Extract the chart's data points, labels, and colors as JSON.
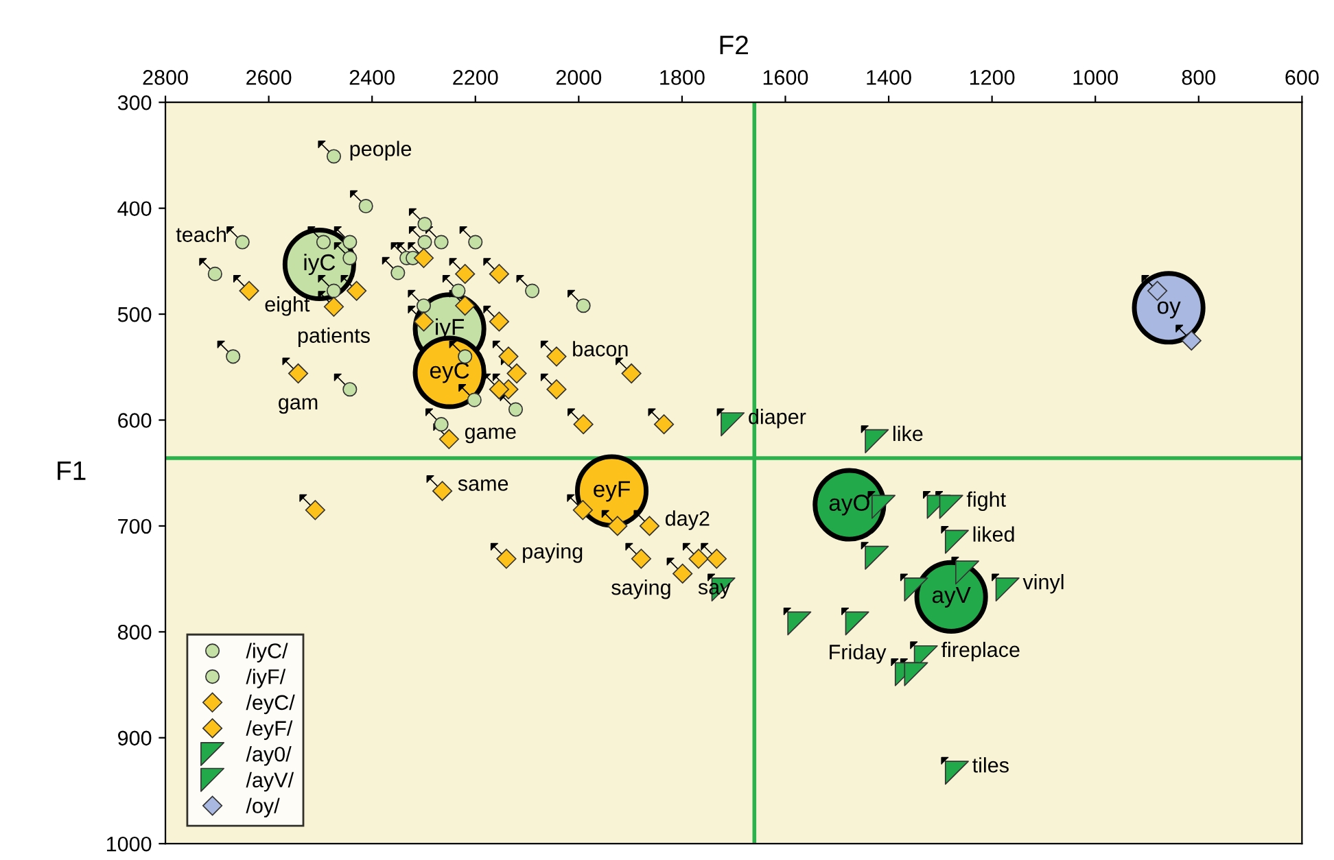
{
  "chart_data": {
    "type": "scatter",
    "xlabel": "F2",
    "ylabel": "F1",
    "xlim": [
      2800,
      600
    ],
    "ylim": [
      1000,
      300
    ],
    "xticks": [
      2800,
      2600,
      2400,
      2200,
      2000,
      1800,
      1600,
      1400,
      1200,
      1000,
      800,
      600
    ],
    "yticks": [
      300,
      400,
      500,
      600,
      700,
      800,
      900,
      1000
    ],
    "grid": false,
    "legend": "bottom left",
    "series": [
      {
        "name": "/iyC/",
        "color": "#c5e0a5",
        "marker": "circle",
        "x": [
          2474,
          2412,
          2651,
          2704,
          2494,
          2443,
          2443,
          2474,
          2669,
          2350,
          2298,
          2298,
          2266,
          2333,
          2321
        ],
        "values": [
          351,
          398,
          432,
          462,
          432,
          432,
          447,
          478,
          540,
          461,
          415,
          432,
          432,
          447,
          447
        ]
      },
      {
        "name": "/iyF/",
        "color": "#c5e0a5",
        "marker": "circle",
        "x": [
          2443,
          2200,
          2090,
          2300,
          2233,
          2220,
          2202,
          2122,
          2266,
          1991
        ],
        "values": [
          571,
          432,
          478,
          492,
          478,
          540,
          581,
          590,
          604,
          492
        ]
      },
      {
        "name": "/eyC/",
        "color": "#fcc21b",
        "marker": "diamond",
        "x": [
          2638,
          2430,
          2474,
          2543,
          2300,
          2220,
          2154,
          2220,
          2300,
          2154,
          2136,
          2120,
          2136,
          2043,
          2043,
          2251,
          1898,
          1991,
          1835,
          2510,
          2264,
          2140,
          1879,
          1768,
          1733
        ],
        "values": [
          478,
          478,
          493,
          556,
          447,
          462,
          462,
          492,
          507,
          507,
          540,
          556,
          571,
          540,
          571,
          618,
          556,
          604,
          604,
          685,
          667,
          731,
          731,
          731,
          731
        ]
      },
      {
        "name": "/eyF/",
        "color": "#fcc21b",
        "marker": "diamond",
        "x": [
          2154,
          1992,
          1925,
          1863,
          1799
        ],
        "values": [
          571,
          685,
          700,
          700,
          745
        ]
      },
      {
        "name": "/ay0/",
        "color": "#22aa4a",
        "marker": "triangle",
        "x": [
          1702,
          1423,
          1410,
          1423
        ],
        "values": [
          604,
          620,
          682,
          730
        ]
      },
      {
        "name": "/ayV/",
        "color": "#22aa4a",
        "marker": "triangle",
        "x": [
          1303,
          1279,
          1268,
          1248,
          1347,
          1170,
          1573,
          1461,
          1328,
          1365,
          1347,
          1268,
          1720
        ],
        "values": [
          682,
          682,
          715,
          744,
          760,
          760,
          792,
          792,
          824,
          840,
          840,
          933,
          760
        ]
      },
      {
        "name": "/oy/",
        "color": "#a9b8e0",
        "marker": "diamond",
        "x": [
          880,
          814
        ],
        "values": [
          478,
          525
        ]
      },
      {
        "type": "bubble",
        "marker": "circle",
        "colors": [
          "#c5e0a5",
          "#c5e0a5",
          "#fcc21b",
          "#fcc21b",
          "#22aa4a",
          "#22aa4a",
          "#a9b8e0"
        ],
        "x": [
          2502,
          2250,
          2250,
          1936,
          1476,
          1279,
          858
        ],
        "values": [
          453,
          514,
          555,
          667,
          680,
          767,
          494
        ],
        "value_labels": [
          "iyC",
          "iyF",
          "eyC",
          "eyF",
          "ayO",
          "ayV",
          "oy"
        ]
      }
    ],
    "ref_lines": [
      {
        "axis": "x",
        "value": 1660,
        "color": "#2bb24c"
      },
      {
        "axis": "y",
        "value": 636,
        "color": "#2bb24c"
      }
    ],
    "annotations": [
      {
        "text": "people",
        "x": 2474,
        "y": 351
      },
      {
        "text": "teach",
        "x": 2651,
        "y": 432
      },
      {
        "text": "eight",
        "x": 2638,
        "y": 478
      },
      {
        "text": "patients",
        "x": 2474,
        "y": 493
      },
      {
        "text": "gam",
        "x": 2543,
        "y": 556
      },
      {
        "text": "bacon",
        "x": 2043,
        "y": 540
      },
      {
        "text": "game",
        "x": 2251,
        "y": 618
      },
      {
        "text": "same",
        "x": 2264,
        "y": 667
      },
      {
        "text": "paying",
        "x": 2140,
        "y": 731
      },
      {
        "text": "saying",
        "x": 1879,
        "y": 731
      },
      {
        "text": "say",
        "x": 1799,
        "y": 745
      },
      {
        "text": "day2",
        "x": 1863,
        "y": 700
      },
      {
        "text": "diaper",
        "x": 1702,
        "y": 604
      },
      {
        "text": "like",
        "x": 1423,
        "y": 620
      },
      {
        "text": "fight",
        "x": 1279,
        "y": 682
      },
      {
        "text": "liked",
        "x": 1268,
        "y": 715
      },
      {
        "text": "vinyl",
        "x": 1170,
        "y": 760
      },
      {
        "text": "Friday",
        "x": 1461,
        "y": 792
      },
      {
        "text": "fireplace",
        "x": 1328,
        "y": 824
      },
      {
        "text": "tiles",
        "x": 1268,
        "y": 933
      }
    ]
  }
}
